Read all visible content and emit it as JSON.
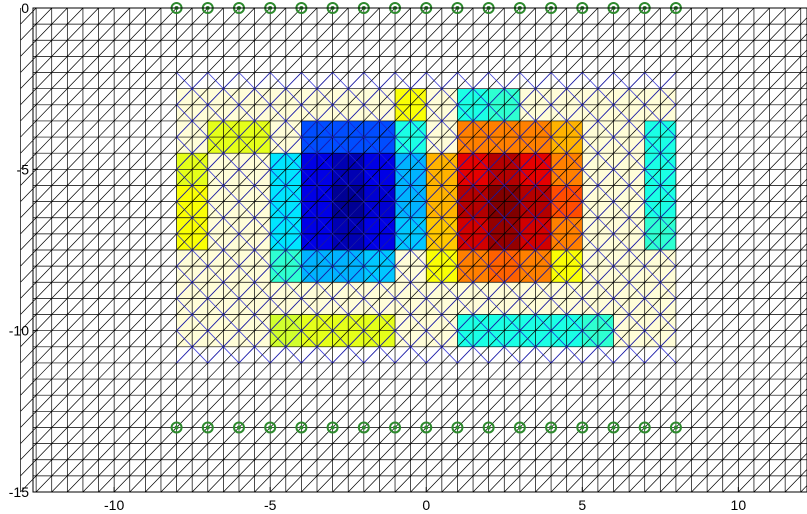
{
  "chart_data": {
    "type": "heatmap",
    "title": "",
    "xlabel": "",
    "ylabel": "",
    "xlim": [
      -12.6,
      12.2
    ],
    "ylim": [
      -15,
      0
    ],
    "xticks": [
      -10,
      -5,
      0,
      5,
      10
    ],
    "yticks": [
      0,
      -5,
      -10,
      -15
    ],
    "xtick_labels": [
      "-10",
      "-5",
      "0",
      "5",
      "10"
    ],
    "ytick_labels": [
      "0",
      "-5",
      "-10",
      "-15"
    ],
    "colormap": "jet",
    "mesh": {
      "outer_cell_size": 0.5,
      "outer_cell_color": "#000000",
      "inner_cell_size": 1,
      "inner_cell_color": "#1f1fd0",
      "inner_mesh_x": [
        -8,
        8
      ],
      "inner_mesh_y": [
        -11,
        -2
      ]
    },
    "cell_grid": {
      "x_edges": [
        -8,
        -7,
        -6,
        -5,
        -4,
        -3,
        -2,
        -1,
        0,
        1,
        2,
        3,
        4,
        5,
        6,
        7,
        8
      ],
      "y_edges": [
        -2.5,
        -3.5,
        -4.5,
        -5.5,
        -6.5,
        -7.5,
        -8.5,
        -9.5,
        -10.5
      ],
      "values": [
        [
          0.45,
          0.5,
          0.52,
          0.52,
          0.5,
          0.5,
          0.5,
          0.62,
          0.48,
          0.4,
          0.42,
          0.5,
          0.5,
          0.5,
          0.5,
          0.5
        ],
        [
          0.55,
          0.6,
          0.6,
          0.45,
          0.2,
          0.2,
          0.2,
          0.4,
          0.55,
          0.75,
          0.75,
          0.75,
          0.7,
          0.55,
          0.45,
          0.4
        ],
        [
          0.6,
          0.52,
          0.5,
          0.35,
          0.1,
          0.05,
          0.1,
          0.3,
          0.7,
          0.9,
          0.95,
          0.9,
          0.75,
          0.5,
          0.45,
          0.4
        ],
        [
          0.62,
          0.52,
          0.5,
          0.35,
          0.1,
          0.02,
          0.08,
          0.3,
          0.7,
          0.95,
          1.0,
          0.95,
          0.8,
          0.55,
          0.45,
          0.4
        ],
        [
          0.62,
          0.52,
          0.5,
          0.35,
          0.1,
          0.05,
          0.1,
          0.32,
          0.68,
          0.92,
          0.98,
          0.92,
          0.75,
          0.55,
          0.48,
          0.42
        ],
        [
          0.55,
          0.5,
          0.48,
          0.42,
          0.3,
          0.3,
          0.32,
          0.45,
          0.62,
          0.75,
          0.78,
          0.75,
          0.62,
          0.52,
          0.5,
          0.45
        ],
        [
          0.48,
          0.5,
          0.55,
          0.55,
          0.55,
          0.55,
          0.55,
          0.5,
          0.45,
          0.45,
          0.45,
          0.45,
          0.45,
          0.48,
          0.5,
          0.48
        ],
        [
          0.45,
          0.48,
          0.55,
          0.58,
          0.6,
          0.6,
          0.6,
          0.55,
          0.45,
          0.4,
          0.4,
          0.4,
          0.4,
          0.42,
          0.45,
          0.45
        ]
      ]
    },
    "markers_top": {
      "y": 0,
      "x": [
        -8,
        -7,
        -6,
        -5,
        -4,
        -3,
        -2,
        -1,
        0,
        1,
        2,
        3,
        4,
        5,
        6,
        7,
        8
      ],
      "color": "#2e8b2e"
    },
    "markers_bottom": {
      "y": -13,
      "x": [
        -8,
        -7,
        -6,
        -5,
        -4,
        -3,
        -2,
        -1,
        0,
        1,
        2,
        3,
        4,
        5,
        6,
        7,
        8
      ],
      "color": "#2e8b2e"
    }
  }
}
